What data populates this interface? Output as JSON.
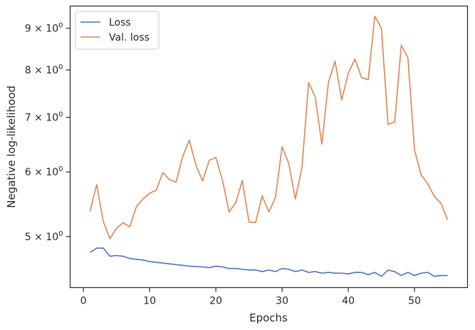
{
  "chart_data": {
    "type": "line",
    "xlabel": "Epochs",
    "ylabel": "Negative log-likelihood",
    "y_scale": "log",
    "xlim": [
      -2,
      58
    ],
    "ylim": [
      4.33,
      9.58
    ],
    "x_ticks": [
      0,
      10,
      20,
      30,
      40,
      50
    ],
    "x_tick_labels": [
      "0",
      "10",
      "20",
      "30",
      "40",
      "50"
    ],
    "y_ticks": [
      5,
      6,
      7,
      8,
      9
    ],
    "y_tick_labels": [
      {
        "base": "5 × 10",
        "exp": "0"
      },
      {
        "base": "6 × 10",
        "exp": "0"
      },
      {
        "base": "7 × 10",
        "exp": "0"
      },
      {
        "base": "8 × 10",
        "exp": "0"
      },
      {
        "base": "9 × 10",
        "exp": "0"
      }
    ],
    "grid": false,
    "legend_position": "top-left",
    "series": [
      {
        "name": "Loss",
        "color": "#4c72b0",
        "x": [
          1,
          2,
          3,
          4,
          5,
          6,
          7,
          8,
          9,
          10,
          11,
          12,
          13,
          14,
          15,
          16,
          17,
          18,
          19,
          20,
          21,
          22,
          23,
          24,
          25,
          26,
          27,
          28,
          29,
          30,
          31,
          32,
          33,
          34,
          35,
          36,
          37,
          38,
          39,
          40,
          41,
          42,
          43,
          44,
          45,
          46,
          47,
          48,
          49,
          50,
          51,
          52,
          53,
          54,
          55
        ],
        "y": [
          4.78,
          4.84,
          4.84,
          4.73,
          4.74,
          4.73,
          4.7,
          4.69,
          4.68,
          4.66,
          4.65,
          4.64,
          4.63,
          4.62,
          4.61,
          4.6,
          4.595,
          4.59,
          4.58,
          4.6,
          4.59,
          4.57,
          4.57,
          4.56,
          4.55,
          4.55,
          4.53,
          4.55,
          4.53,
          4.57,
          4.56,
          4.53,
          4.55,
          4.52,
          4.53,
          4.51,
          4.52,
          4.51,
          4.51,
          4.5,
          4.52,
          4.52,
          4.49,
          4.52,
          4.47,
          4.55,
          4.53,
          4.48,
          4.52,
          4.48,
          4.51,
          4.52,
          4.47,
          4.48,
          4.48
        ]
      },
      {
        "name": "Val. loss",
        "color": "#dd8452",
        "x": [
          1,
          2,
          3,
          4,
          5,
          6,
          7,
          8,
          9,
          10,
          11,
          12,
          13,
          14,
          15,
          16,
          17,
          18,
          19,
          20,
          21,
          22,
          23,
          24,
          25,
          26,
          27,
          28,
          29,
          30,
          31,
          32,
          33,
          34,
          35,
          36,
          37,
          38,
          39,
          40,
          41,
          42,
          43,
          44,
          45,
          46,
          47,
          48,
          49,
          50,
          51,
          52,
          53,
          54,
          55
        ],
        "y": [
          5.37,
          5.79,
          5.22,
          4.97,
          5.12,
          5.2,
          5.14,
          5.44,
          5.56,
          5.65,
          5.7,
          5.99,
          5.87,
          5.83,
          6.27,
          6.56,
          6.11,
          5.85,
          6.2,
          6.25,
          5.86,
          5.36,
          5.5,
          5.86,
          5.21,
          5.2,
          5.61,
          5.36,
          5.58,
          6.44,
          6.15,
          5.56,
          6.07,
          7.72,
          7.42,
          6.49,
          7.73,
          8.2,
          7.35,
          7.93,
          8.25,
          7.83,
          7.78,
          9.31,
          9.0,
          6.86,
          6.91,
          8.58,
          8.28,
          6.38,
          5.95,
          5.8,
          5.6,
          5.49,
          5.24
        ]
      }
    ]
  }
}
